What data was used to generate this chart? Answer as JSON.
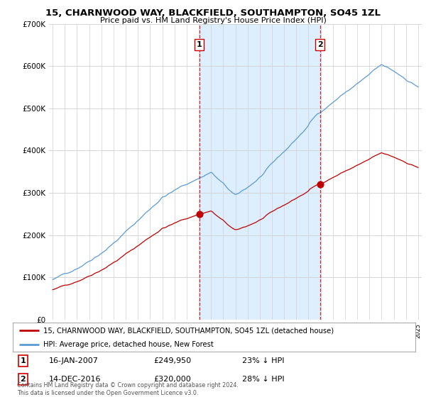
{
  "title": "15, CHARNWOOD WAY, BLACKFIELD, SOUTHAMPTON, SO45 1ZL",
  "subtitle": "Price paid vs. HM Land Registry's House Price Index (HPI)",
  "legend_line1": "15, CHARNWOOD WAY, BLACKFIELD, SOUTHAMPTON, SO45 1ZL (detached house)",
  "legend_line2": "HPI: Average price, detached house, New Forest",
  "footnote": "Contains HM Land Registry data © Crown copyright and database right 2024.\nThis data is licensed under the Open Government Licence v3.0.",
  "sale1_date": "16-JAN-2007",
  "sale1_price": 249950,
  "sale2_date": "14-DEC-2016",
  "sale2_price": 320000,
  "sale1_pct": "23% ↓ HPI",
  "sale2_pct": "28% ↓ HPI",
  "hpi_color": "#5b9bd5",
  "sale_color": "#c00000",
  "shade_color": "#ddeeff",
  "background_color": "#ffffff",
  "grid_color": "#d0d0d0",
  "ylim": [
    0,
    700000
  ],
  "yticks": [
    0,
    100000,
    200000,
    300000,
    400000,
    500000,
    600000,
    700000
  ],
  "ytick_labels": [
    "£0",
    "£100K",
    "£200K",
    "£300K",
    "£400K",
    "£500K",
    "£600K",
    "£700K"
  ],
  "sale1_x": 2007.04,
  "sale2_x": 2016.95
}
